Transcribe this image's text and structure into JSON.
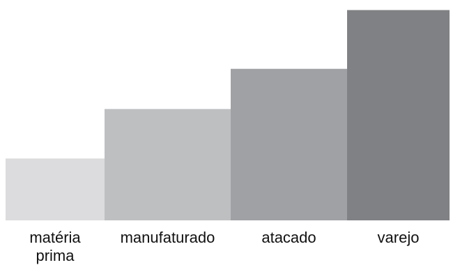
{
  "chart_data": {
    "type": "bar",
    "title": "",
    "xlabel": "",
    "ylabel": "",
    "categories": [
      [
        "matéria",
        "prima"
      ],
      [
        "manufaturado"
      ],
      [
        "atacado"
      ],
      [
        "varejo"
      ]
    ],
    "values": [
      1.0,
      1.8,
      2.45,
      3.4
    ],
    "ylim": [
      0,
      3.45
    ],
    "colors": [
      "#dcdcde",
      "#bebfc1",
      "#a0a1a4",
      "#808184"
    ],
    "grid": false,
    "legend": "none",
    "axes_visible": false
  }
}
